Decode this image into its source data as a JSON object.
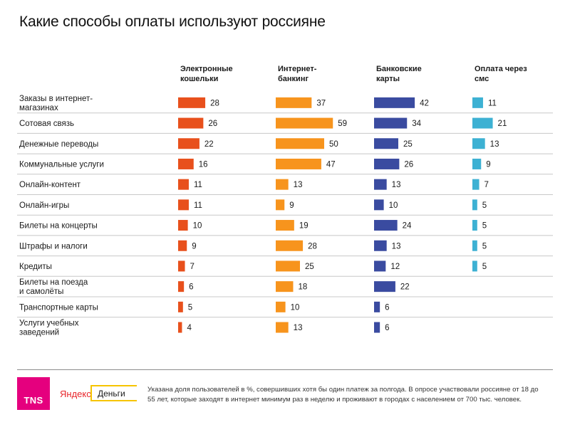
{
  "title": "Какие способы оплаты используют россияне",
  "chart_data": {
    "type": "bar",
    "title": "Какие способы оплаты используют россияне",
    "categories": [
      [
        "Заказы в интернет-",
        "магазинах"
      ],
      [
        "Сотовая связь"
      ],
      [
        "Денежные переводы"
      ],
      [
        "Коммунальные услуги"
      ],
      [
        "Онлайн-контент"
      ],
      [
        "Онлайн-игры"
      ],
      [
        "Билеты на концерты"
      ],
      [
        "Штрафы и налоги"
      ],
      [
        "Кредиты"
      ],
      [
        "Билеты на поезда",
        "и самолёты"
      ],
      [
        "Транспортные карты"
      ],
      [
        "Услуги учебных",
        "заведений"
      ]
    ],
    "series": [
      {
        "name": [
          "Электронные",
          "кошельки"
        ],
        "color": "#e8501c",
        "values": [
          28,
          26,
          22,
          16,
          11,
          11,
          10,
          9,
          7,
          6,
          5,
          4
        ]
      },
      {
        "name": [
          "Интернет-",
          "банкинг"
        ],
        "color": "#f7941d",
        "values": [
          37,
          59,
          50,
          47,
          13,
          9,
          19,
          28,
          25,
          18,
          10,
          13
        ]
      },
      {
        "name": [
          "Банковские",
          "карты"
        ],
        "color": "#3a4ba0",
        "values": [
          42,
          34,
          25,
          26,
          13,
          10,
          24,
          13,
          12,
          22,
          6,
          6
        ]
      },
      {
        "name": [
          "Оплата через",
          "смс"
        ],
        "color": "#3db1d3",
        "values": [
          11,
          21,
          13,
          9,
          7,
          5,
          5,
          5,
          5,
          null,
          null,
          null
        ]
      }
    ],
    "units": "%",
    "grid": "horizontal separators between rows"
  },
  "footer": {
    "tns_logo": "TNS",
    "yandex": "Яндекс",
    "dengi": "Деньги",
    "footnote": "Указана доля пользователей в %, совершивших хотя бы один платеж за полгода. В опросе участвовали россияне от 18 до 55 лет, которые заходят в интернет минимум раз в неделю и проживают в городах с населением от 700 тыс. человек."
  }
}
